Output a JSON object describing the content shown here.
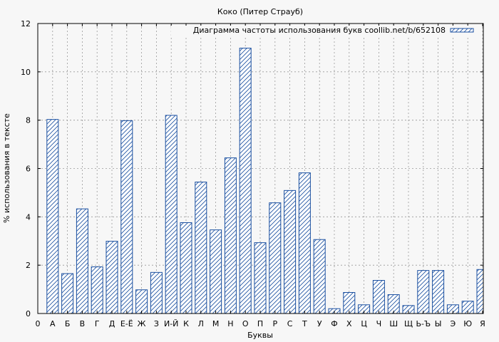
{
  "chart_data": {
    "type": "bar",
    "title": "Коко (Питер Страуб)",
    "xlabel": "Буквы",
    "ylabel": "% использования в тексте",
    "ylim": [
      0,
      12
    ],
    "yticks": [
      "0",
      "2",
      "4",
      "6",
      "8",
      "10",
      "12"
    ],
    "x_first_tick_label": "0",
    "grid": true,
    "legend_position": "top-right",
    "categories": [
      "А",
      "Б",
      "В",
      "Г",
      "Д",
      "Е-Ё",
      "Ж",
      "З",
      "И-Й",
      "К",
      "Л",
      "М",
      "Н",
      "О",
      "П",
      "Р",
      "С",
      "Т",
      "У",
      "Ф",
      "Х",
      "Ц",
      "Ч",
      "Ш",
      "Щ",
      "Ь-Ъ",
      "Ы",
      "Э",
      "Ю",
      "Я"
    ],
    "series": [
      {
        "name": "Диаграмма частоты использования букв coollib.net/b/652108",
        "values": [
          8.03,
          1.65,
          4.33,
          1.93,
          2.99,
          7.98,
          0.98,
          1.7,
          8.2,
          3.76,
          5.44,
          3.46,
          6.44,
          10.98,
          2.93,
          4.58,
          5.09,
          5.82,
          3.06,
          0.2,
          0.87,
          0.36,
          1.37,
          0.78,
          0.33,
          1.78,
          1.78,
          0.36,
          0.51,
          1.82
        ]
      }
    ],
    "colors": {
      "bar_stroke": "#1a4fa0",
      "grid": "#999999",
      "background": "#f7f7f7"
    }
  }
}
